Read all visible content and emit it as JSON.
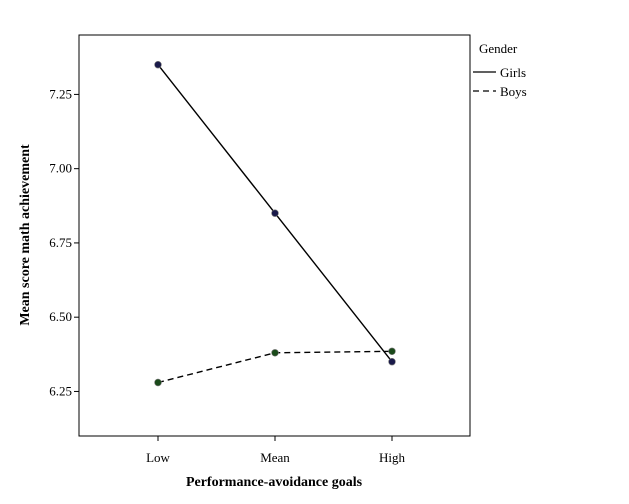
{
  "chart_data": {
    "type": "line",
    "xlabel": "Performance-avoidance goals",
    "ylabel": "Mean score math achievement",
    "categories": [
      "Low",
      "Mean",
      "High"
    ],
    "ylim": [
      6.1,
      7.45
    ],
    "yticks": [
      "6.25",
      "6.50",
      "6.75",
      "7.00",
      "7.25"
    ],
    "grid": false,
    "legend": {
      "title": "Gender",
      "placement": "right"
    },
    "series": [
      {
        "name": "Girls",
        "values": [
          7.35,
          6.85,
          6.35
        ],
        "style": "solid",
        "marker_color": "#1a1a4a"
      },
      {
        "name": "Boys",
        "values": [
          6.28,
          6.38,
          6.385
        ],
        "style": "dashed",
        "marker_color": "#1a4a1a"
      }
    ]
  }
}
